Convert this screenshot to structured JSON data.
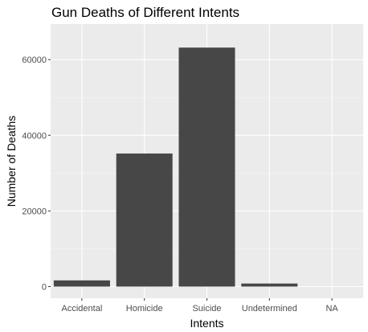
{
  "chart_data": {
    "type": "bar",
    "title": "Gun Deaths of Different Intents",
    "xlabel": "Intents",
    "ylabel": "Number of Deaths",
    "categories": [
      "Accidental",
      "Homicide",
      "Suicide",
      "Undetermined",
      "NA"
    ],
    "values": [
      1639,
      35176,
      63175,
      807,
      1
    ],
    "ylim": [
      0,
      66300
    ],
    "yticks": [
      0,
      20000,
      40000,
      60000
    ],
    "ytick_labels": [
      "0",
      "20000",
      "40000",
      "60000"
    ],
    "grid": true,
    "legend": "none",
    "colors": {
      "bar": "#474747",
      "panel": "#ebebeb",
      "grid_major": "#ffffff",
      "grid_minor": "#f5f5f5"
    }
  }
}
